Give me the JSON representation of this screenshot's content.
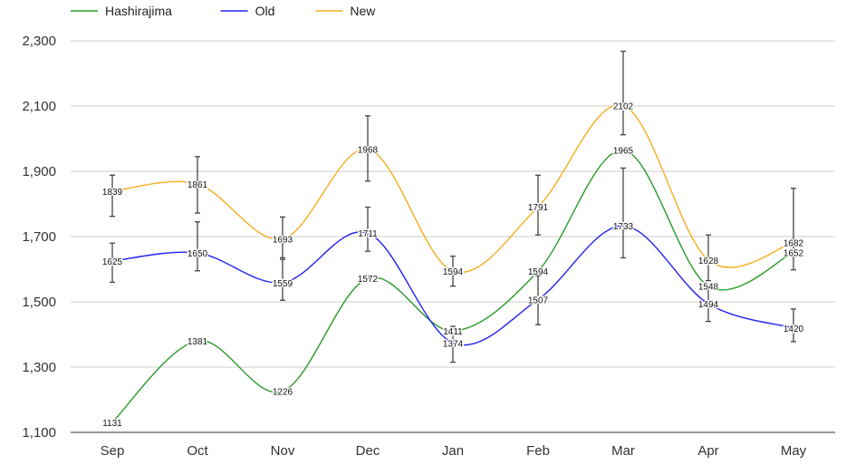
{
  "chart_data": {
    "type": "line",
    "title": "",
    "xlabel": "",
    "ylabel": "",
    "categories": [
      "Sep",
      "Oct",
      "Nov",
      "Dec",
      "Jan",
      "Feb",
      "Mar",
      "Apr",
      "May"
    ],
    "ylim": [
      1100,
      2300
    ],
    "yticks": [
      1100,
      1300,
      1500,
      1700,
      1900,
      2100,
      2300
    ],
    "ytick_labels": [
      "1,100",
      "1,300",
      "1,500",
      "1,700",
      "1,900",
      "2,100",
      "2,300"
    ],
    "grid": true,
    "legend_position": "top-left",
    "curve": "smooth",
    "series": [
      {
        "name": "Hashirajima",
        "color": "#2a9a2a",
        "values": [
          1131,
          1381,
          1226,
          1572,
          1411,
          1594,
          1965,
          1548,
          1652
        ],
        "error_bars": false
      },
      {
        "name": "Old",
        "color": "#2222ee",
        "values": [
          1625,
          1650,
          1559,
          1711,
          1374,
          1507,
          1733,
          1494,
          1420
        ],
        "error_bars": true,
        "error_low": [
          1560,
          1595,
          1505,
          1655,
          1315,
          1430,
          1635,
          1440,
          1378
        ],
        "error_high": [
          1680,
          1745,
          1630,
          1790,
          1425,
          1580,
          1910,
          1545,
          1478
        ]
      },
      {
        "name": "New",
        "color": "#f5ad1f",
        "values": [
          1839,
          1861,
          1693,
          1968,
          1594,
          1791,
          2102,
          1628,
          1682
        ],
        "error_bars": true,
        "error_low": [
          1762,
          1772,
          1635,
          1870,
          1548,
          1705,
          2012,
          1565,
          1598
        ],
        "error_high": [
          1888,
          1945,
          1760,
          2070,
          1640,
          1888,
          2268,
          1705,
          1848
        ]
      }
    ],
    "data_labels": true
  }
}
